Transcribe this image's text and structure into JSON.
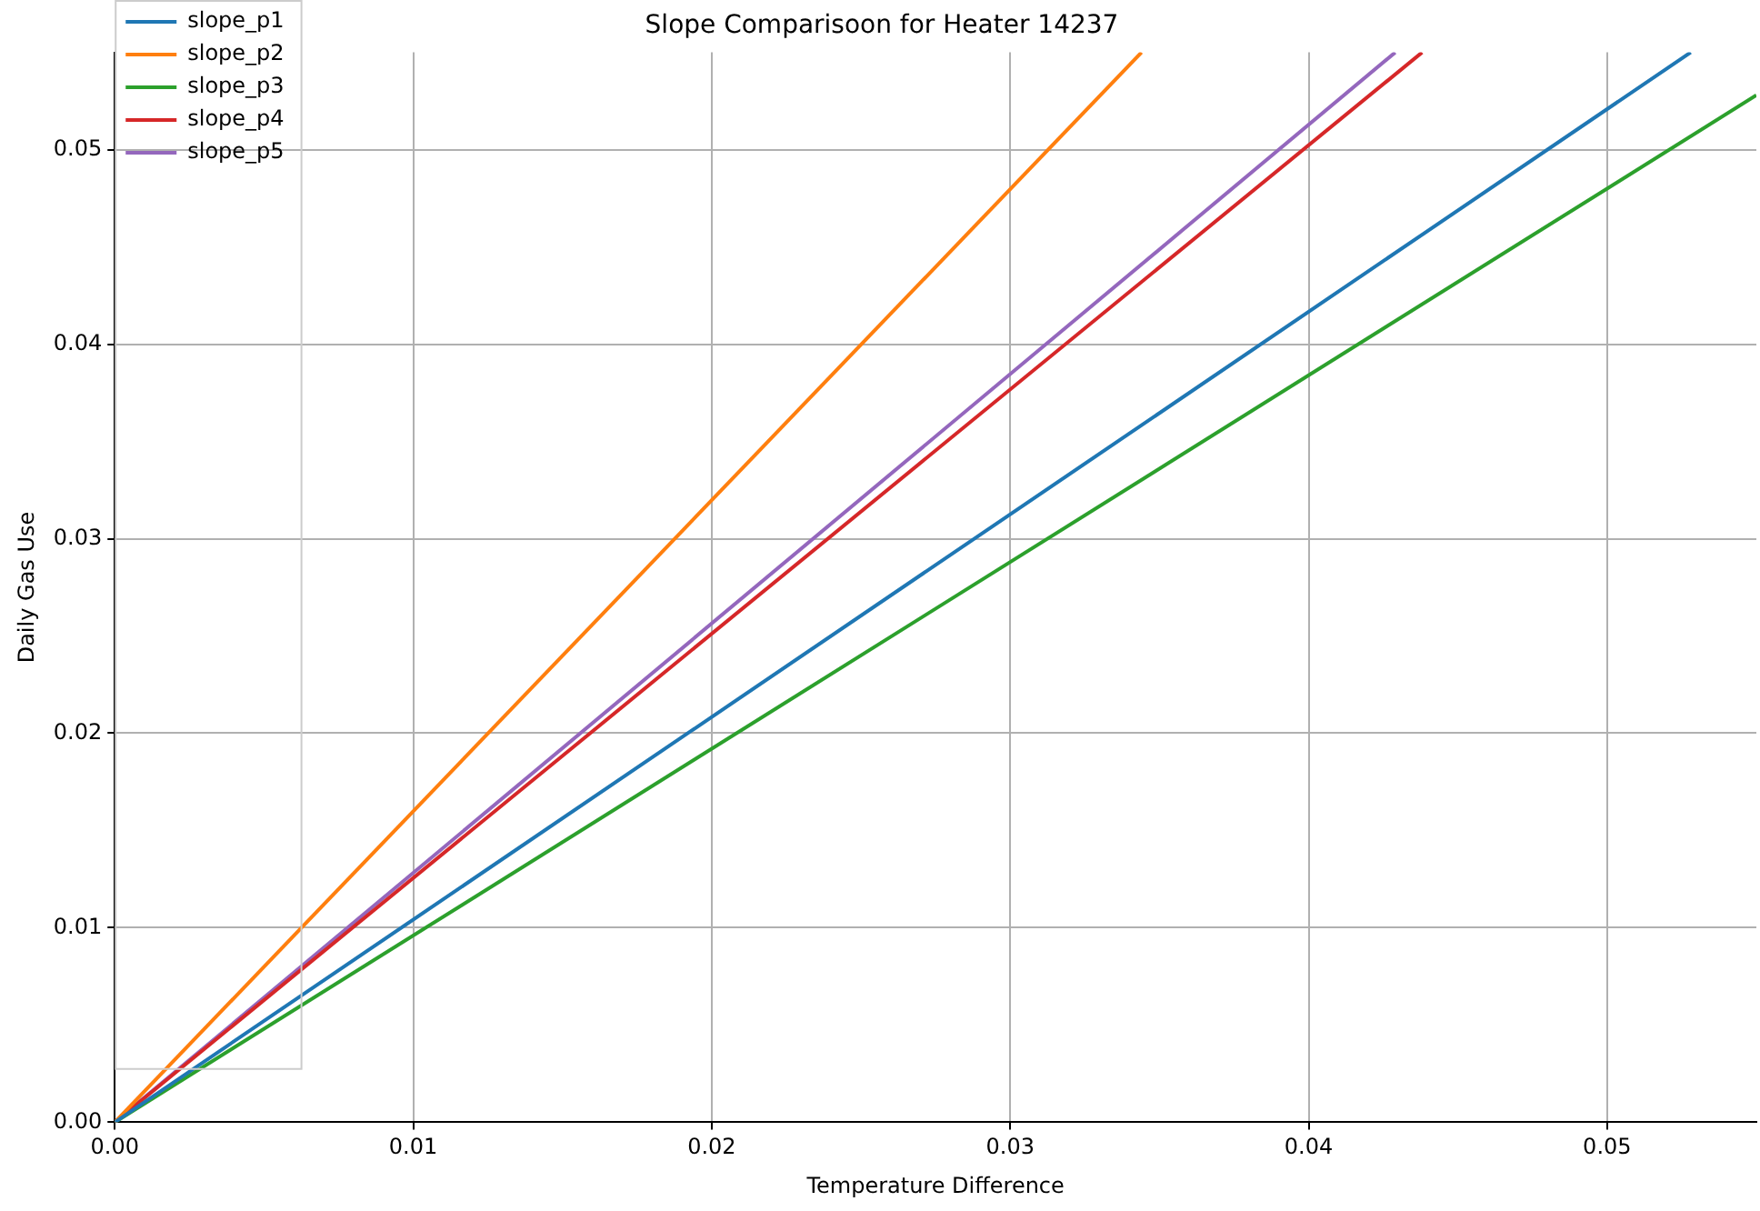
{
  "chart_data": {
    "type": "line",
    "title": "Slope Comparisoon for Heater 14237",
    "xlabel": "Temperature Difference",
    "ylabel": "Daily Gas Use",
    "xlim": [
      0,
      0.055
    ],
    "ylim": [
      0,
      0.055
    ],
    "xticks": [
      {
        "value": 0,
        "label": "0.00"
      },
      {
        "value": 0.01,
        "label": "0.01"
      },
      {
        "value": 0.02,
        "label": "0.02"
      },
      {
        "value": 0.03,
        "label": "0.03"
      },
      {
        "value": 0.04,
        "label": "0.04"
      },
      {
        "value": 0.05,
        "label": "0.05"
      }
    ],
    "yticks": [
      {
        "value": 0,
        "label": "0.00"
      },
      {
        "value": 0.01,
        "label": "0.01"
      },
      {
        "value": 0.02,
        "label": "0.02"
      },
      {
        "value": 0.03,
        "label": "0.03"
      },
      {
        "value": 0.04,
        "label": "0.04"
      },
      {
        "value": 0.05,
        "label": "0.05"
      }
    ],
    "grid": true,
    "legend": "top left",
    "marker": "none",
    "line_style": "solid",
    "series": [
      {
        "name": "slope_p1",
        "color": "#1f77b4",
        "x": [
          0,
          0.0528
        ],
        "values": [
          0,
          0.055
        ]
      },
      {
        "name": "slope_p2",
        "color": "#ff7f0e",
        "x": [
          0,
          0.0344
        ],
        "values": [
          0,
          0.055
        ]
      },
      {
        "name": "slope_p3",
        "color": "#2ca02c",
        "x": [
          0,
          0.055
        ],
        "values": [
          0,
          0.0528
        ]
      },
      {
        "name": "slope_p4",
        "color": "#d62728",
        "x": [
          0,
          0.0438
        ],
        "values": [
          0,
          0.055
        ]
      },
      {
        "name": "slope_p5",
        "color": "#9467bd",
        "x": [
          0,
          0.0429
        ],
        "values": [
          0,
          0.055
        ]
      }
    ]
  }
}
